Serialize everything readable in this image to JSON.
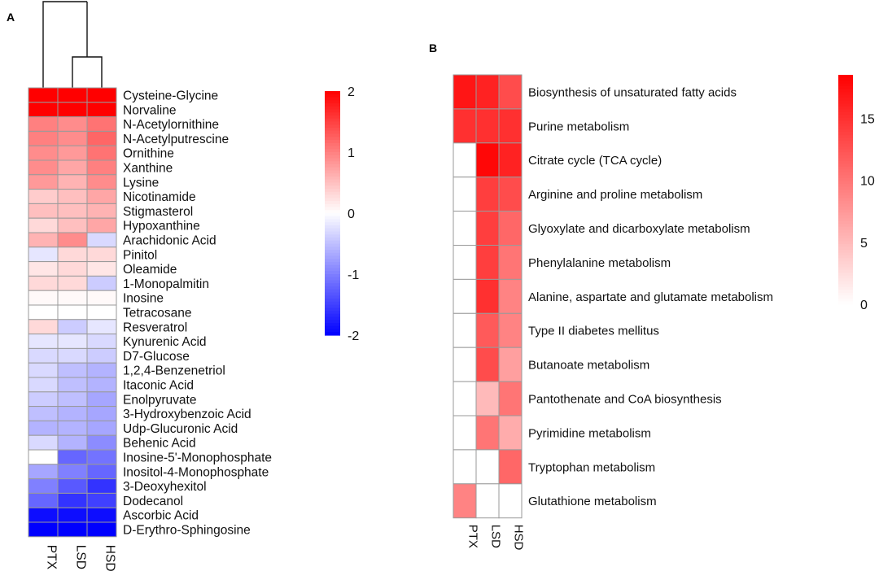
{
  "chart_data": [
    {
      "type": "heatmap",
      "panel_label": "A",
      "columns": [
        "PTX",
        "LSD",
        "HSD"
      ],
      "rows": [
        "Cysteine-Glycine",
        "Norvaline",
        "N-Acetylornithine",
        "N-Acetylputrescine",
        "Ornithine",
        "Xanthine",
        "Lysine",
        "Nicotinamide",
        "Stigmasterol",
        "Hypoxanthine",
        "Arachidonic Acid",
        "Pinitol",
        "Oleamide",
        "1-Monopalmitin",
        "Inosine",
        "Tetracosane",
        "Resveratrol",
        "Kynurenic Acid",
        "D7-Glucose",
        "1,2,4-Benzenetriol",
        "Itaconic Acid",
        "Enolpyruvate",
        "3-Hydroxybenzoic Acid",
        "Udp-Glucuronic Acid",
        "Behenic Acid",
        "Inosine-5'-Monophosphate",
        "Inositol-4-Monophosphate",
        "3-Deoxyhexitol",
        "Dodecanol",
        "Ascorbic Acid",
        "D-Erythro-Sphingosine"
      ],
      "values": [
        [
          2.0,
          2.0,
          2.0
        ],
        [
          2.0,
          2.0,
          2.0
        ],
        [
          1.0,
          0.9,
          1.1
        ],
        [
          1.0,
          0.9,
          1.2
        ],
        [
          0.9,
          0.8,
          1.1
        ],
        [
          0.9,
          0.7,
          1.0
        ],
        [
          0.8,
          0.6,
          0.9
        ],
        [
          0.4,
          0.5,
          0.7
        ],
        [
          0.5,
          0.5,
          0.6
        ],
        [
          0.3,
          0.5,
          0.7
        ],
        [
          0.6,
          0.9,
          -0.3
        ],
        [
          -0.2,
          0.3,
          0.3
        ],
        [
          0.2,
          0.3,
          0.2
        ],
        [
          0.3,
          0.3,
          -0.4
        ],
        [
          0.05,
          0.05,
          0.05
        ],
        [
          0.0,
          0.0,
          0.0
        ],
        [
          0.3,
          -0.4,
          -0.2
        ],
        [
          -0.2,
          -0.2,
          -0.3
        ],
        [
          -0.3,
          -0.3,
          -0.4
        ],
        [
          -0.3,
          -0.5,
          -0.6
        ],
        [
          -0.3,
          -0.5,
          -0.6
        ],
        [
          -0.4,
          -0.5,
          -0.7
        ],
        [
          -0.5,
          -0.6,
          -0.7
        ],
        [
          -0.6,
          -0.6,
          -0.7
        ],
        [
          -0.3,
          -0.6,
          -0.9
        ],
        [
          0.0,
          -1.2,
          -1.1
        ],
        [
          -0.7,
          -1.0,
          -1.2
        ],
        [
          -1.0,
          -1.3,
          -1.6
        ],
        [
          -1.2,
          -1.6,
          -1.5
        ],
        [
          -1.9,
          -1.9,
          -1.9
        ],
        [
          -2.0,
          -2.0,
          -2.0
        ]
      ],
      "colorbar": {
        "min": -2,
        "max": 2,
        "ticks": [
          "2",
          "1",
          "0",
          "-1",
          "-2"
        ],
        "low_color": "#0000ff",
        "mid_color": "#ffffff",
        "high_color": "#ff0000"
      }
    },
    {
      "type": "heatmap",
      "panel_label": "B",
      "columns": [
        "PTX",
        "LSD",
        "HSD"
      ],
      "rows": [
        "Biosynthesis of unsaturated fatty acids",
        "Purine metabolism",
        "Citrate cycle (TCA cycle)",
        "Arginine and proline metabolism",
        "Glyoxylate and dicarboxylate metabolism",
        "Phenylalanine metabolism",
        "Alanine, aspartate and glutamate metabolism",
        "Type II diabetes mellitus",
        "Butanoate metabolism",
        "Pantothenate and CoA biosynthesis",
        "Pyrimidine metabolism",
        "Tryptophan metabolism",
        "Glutathione metabolism"
      ],
      "values": [
        [
          17,
          16,
          13
        ],
        [
          15,
          15,
          15
        ],
        [
          0,
          18,
          16
        ],
        [
          0,
          14,
          13
        ],
        [
          0,
          14,
          11
        ],
        [
          0,
          14,
          10
        ],
        [
          0,
          15,
          9
        ],
        [
          0,
          12,
          9
        ],
        [
          0,
          13,
          7
        ],
        [
          0,
          5,
          10
        ],
        [
          0,
          10,
          6
        ],
        [
          0,
          0,
          11
        ],
        [
          9,
          0,
          0
        ]
      ],
      "colorbar": {
        "min": 0,
        "max": 18.5,
        "ticks": [
          "15",
          "10",
          "5",
          "0"
        ],
        "low_color": "#ffffff",
        "high_color": "#ff0000"
      }
    }
  ]
}
